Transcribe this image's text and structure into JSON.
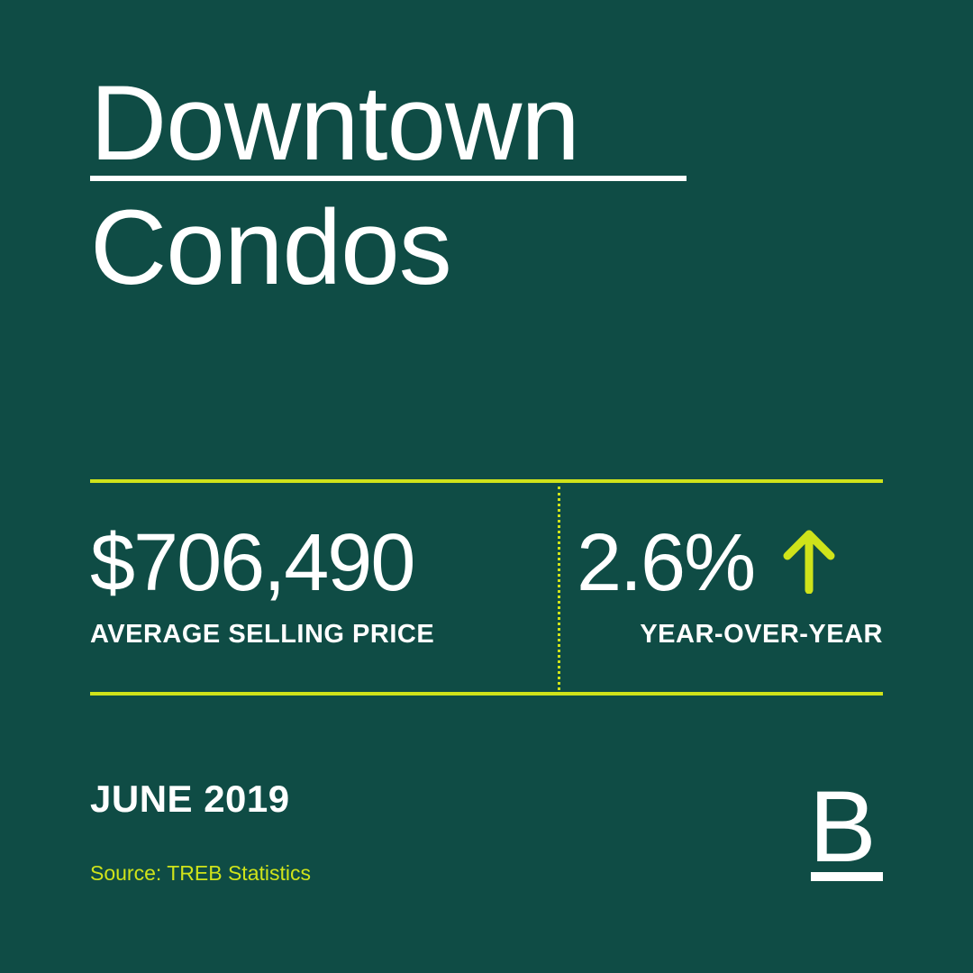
{
  "header": {
    "title_line1": "Downtown",
    "title_line2": "Condos"
  },
  "stats": {
    "price": {
      "value": "$706,490",
      "label": "AVERAGE SELLING PRICE"
    },
    "change": {
      "value": "2.6%",
      "direction_icon": "arrow-up-icon",
      "label": "YEAR-OVER-YEAR"
    }
  },
  "footer": {
    "date": "JUNE 2019",
    "source": "Source: TREB Statistics",
    "logo_letter": "B"
  },
  "colors": {
    "background": "#0f4c45",
    "accent": "#cfe31a",
    "text": "#ffffff"
  }
}
